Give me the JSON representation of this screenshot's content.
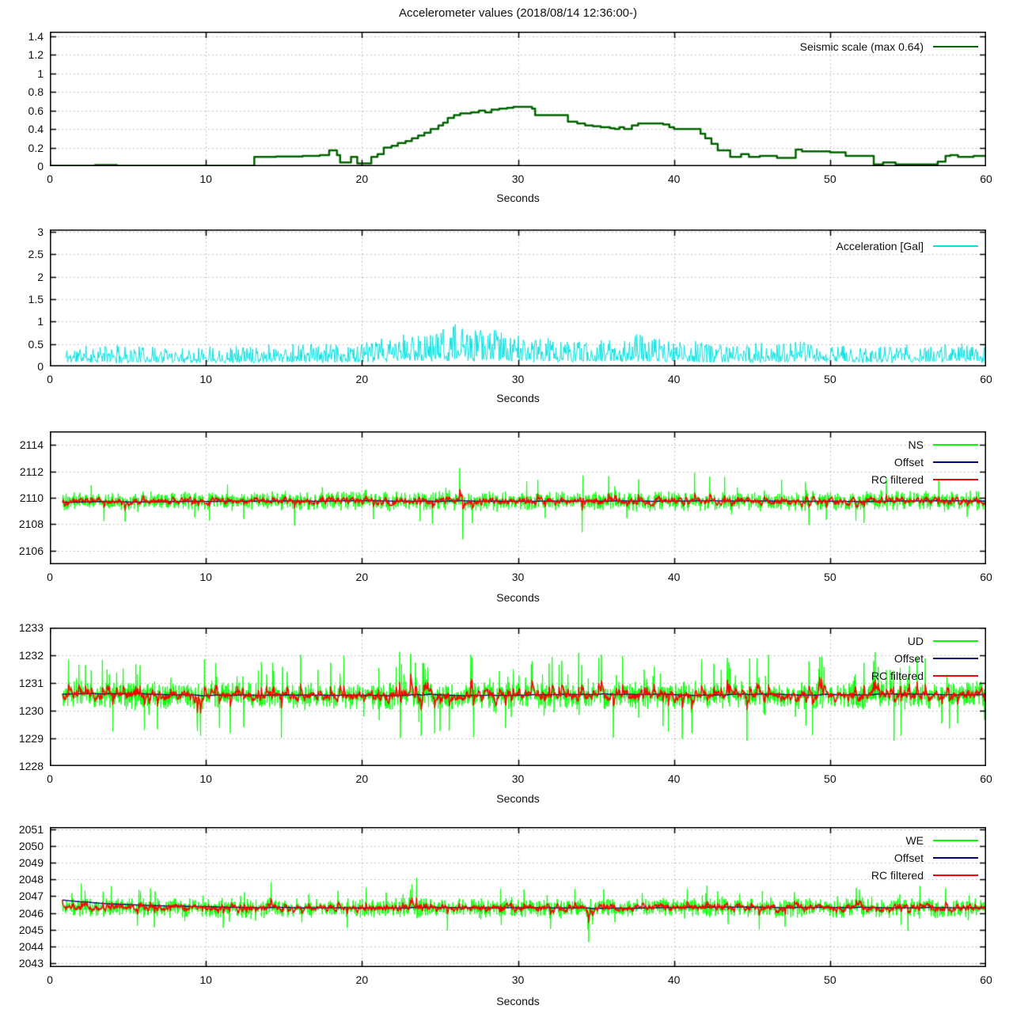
{
  "title": "Accelerometer values (2018/08/14 12:36:00-)",
  "page": {
    "background": "#ffffff",
    "border_color": "#000000",
    "grid_color": "#b0b0b0",
    "text_color": "#111111"
  },
  "chart_data": [
    {
      "type": "line",
      "name": "seismic-scale",
      "xlabel": "Seconds",
      "xlim": [
        0,
        60
      ],
      "xticks": [
        0,
        10,
        20,
        30,
        40,
        50,
        60
      ],
      "ylim": [
        0,
        1.45
      ],
      "yticks": [
        0,
        0.2,
        0.4,
        0.6,
        0.8,
        1,
        1.2,
        1.4
      ],
      "grid": true,
      "legend_position": "top-right-inside",
      "series": [
        {
          "name": "Seismic scale (max 0.64)",
          "color": "#006400",
          "line_width": 2.5,
          "mode": "steps",
          "points": [
            [
              0,
              0.005
            ],
            [
              2.9,
              0.012
            ],
            [
              4.3,
              0.005
            ],
            [
              13.1,
              0.1
            ],
            [
              14.5,
              0.105
            ],
            [
              16.2,
              0.11
            ],
            [
              17.3,
              0.12
            ],
            [
              17.9,
              0.17
            ],
            [
              18.4,
              0.12
            ],
            [
              18.6,
              0.04
            ],
            [
              19.3,
              0.1
            ],
            [
              19.7,
              0.03
            ],
            [
              20.6,
              0.1
            ],
            [
              21.0,
              0.13
            ],
            [
              21.4,
              0.2
            ],
            [
              21.9,
              0.22
            ],
            [
              22.3,
              0.25
            ],
            [
              22.8,
              0.27
            ],
            [
              23.2,
              0.3
            ],
            [
              23.6,
              0.33
            ],
            [
              24.0,
              0.36
            ],
            [
              24.4,
              0.4
            ],
            [
              24.9,
              0.44
            ],
            [
              25.2,
              0.47
            ],
            [
              25.5,
              0.52
            ],
            [
              25.9,
              0.55
            ],
            [
              26.3,
              0.57
            ],
            [
              27.0,
              0.58
            ],
            [
              27.5,
              0.6
            ],
            [
              27.9,
              0.58
            ],
            [
              28.3,
              0.61
            ],
            [
              28.8,
              0.62
            ],
            [
              29.3,
              0.63
            ],
            [
              29.7,
              0.64
            ],
            [
              30.9,
              0.62
            ],
            [
              31.1,
              0.55
            ],
            [
              33.2,
              0.48
            ],
            [
              33.8,
              0.46
            ],
            [
              34.3,
              0.44
            ],
            [
              34.8,
              0.43
            ],
            [
              35.3,
              0.42
            ],
            [
              35.9,
              0.41
            ],
            [
              36.2,
              0.4
            ],
            [
              36.5,
              0.42
            ],
            [
              36.8,
              0.4
            ],
            [
              37.3,
              0.44
            ],
            [
              37.7,
              0.46
            ],
            [
              39.3,
              0.45
            ],
            [
              39.7,
              0.42
            ],
            [
              40.0,
              0.4
            ],
            [
              41.7,
              0.35
            ],
            [
              42.0,
              0.3
            ],
            [
              42.4,
              0.24
            ],
            [
              42.8,
              0.17
            ],
            [
              43.6,
              0.1
            ],
            [
              44.3,
              0.13
            ],
            [
              44.8,
              0.1
            ],
            [
              45.5,
              0.11
            ],
            [
              46.6,
              0.09
            ],
            [
              47.8,
              0.18
            ],
            [
              48.2,
              0.16
            ],
            [
              50.0,
              0.15
            ],
            [
              51.0,
              0.11
            ],
            [
              52.8,
              0.02
            ],
            [
              53.4,
              0.04
            ],
            [
              54.2,
              0.02
            ],
            [
              56.9,
              0.05
            ],
            [
              57.4,
              0.11
            ],
            [
              57.7,
              0.12
            ],
            [
              58.2,
              0.1
            ],
            [
              59.2,
              0.11
            ],
            [
              60,
              0.11
            ]
          ]
        }
      ]
    },
    {
      "type": "line",
      "name": "acceleration",
      "xlabel": "Seconds",
      "xlim": [
        0,
        60
      ],
      "xticks": [
        0,
        10,
        20,
        30,
        40,
        50,
        60
      ],
      "ylim": [
        0,
        3.05
      ],
      "yticks": [
        0,
        0.5,
        1,
        1.5,
        2,
        2.5,
        3
      ],
      "grid": true,
      "legend_position": "top-right-inside",
      "series": [
        {
          "name": "Acceleration [Gal]",
          "color": "#00e1e1",
          "line_width": 1,
          "mode": "envelope-noise",
          "seed": 11,
          "samples": 1300,
          "base": 0.02,
          "envelope": [
            [
              0,
              0.42
            ],
            [
              3,
              0.5
            ],
            [
              6,
              0.45
            ],
            [
              9,
              0.5
            ],
            [
              12,
              0.48
            ],
            [
              15,
              0.55
            ],
            [
              18,
              0.5
            ],
            [
              20,
              0.55
            ],
            [
              22,
              0.7
            ],
            [
              24,
              0.85
            ],
            [
              25,
              0.95
            ],
            [
              26,
              1.05
            ],
            [
              27,
              0.8
            ],
            [
              28,
              1.0
            ],
            [
              29,
              0.85
            ],
            [
              30,
              0.75
            ],
            [
              31,
              0.7
            ],
            [
              32,
              0.65
            ],
            [
              33,
              0.6
            ],
            [
              34,
              0.6
            ],
            [
              35,
              0.6
            ],
            [
              36,
              0.65
            ],
            [
              37,
              0.7
            ],
            [
              38,
              0.8
            ],
            [
              39,
              0.65
            ],
            [
              40,
              0.6
            ],
            [
              41,
              0.55
            ],
            [
              42,
              0.6
            ],
            [
              43,
              0.55
            ],
            [
              44,
              0.5
            ],
            [
              45,
              0.55
            ],
            [
              46,
              0.5
            ],
            [
              47,
              0.55
            ],
            [
              48,
              0.6
            ],
            [
              49,
              0.5
            ],
            [
              50,
              0.55
            ],
            [
              51,
              0.5
            ],
            [
              52,
              0.45
            ],
            [
              53,
              0.5
            ],
            [
              54,
              0.45
            ],
            [
              55,
              0.5
            ],
            [
              56,
              0.45
            ],
            [
              57,
              0.55
            ],
            [
              58,
              0.5
            ],
            [
              59,
              0.55
            ],
            [
              60,
              0.5
            ]
          ]
        }
      ]
    },
    {
      "type": "line",
      "name": "ns-channel",
      "xlabel": "Seconds",
      "xlim": [
        0,
        60
      ],
      "xticks": [
        0,
        10,
        20,
        30,
        40,
        50,
        60
      ],
      "ylim": [
        2104.95,
        2115.05
      ],
      "yticks": [
        2106,
        2108,
        2110,
        2112,
        2114
      ],
      "grid": true,
      "legend_position": "top-right-inside",
      "series": [
        {
          "name": "NS",
          "color": "#00ff00",
          "line_width": 1,
          "mode": "noise",
          "seed": 101,
          "samples": 2400,
          "mean": 2109.75,
          "jitter": 0.85,
          "spike_up_prob": 0.008,
          "spike_up": 1.2,
          "spike_down_prob": 0.008,
          "spike_down": 1.5,
          "forced_spikes": [
            [
              25.8,
              2.5
            ],
            [
              26.0,
              -2.9
            ],
            [
              30.9,
              1.6
            ],
            [
              35.5,
              1.9
            ]
          ]
        },
        {
          "name": "Offset",
          "color": "#000080",
          "line_width": 1.4,
          "mode": "lowpass",
          "source": 0,
          "alpha": 0.006
        },
        {
          "name": "RC filtered",
          "color": "#ff0000",
          "line_width": 1.4,
          "mode": "lowpass",
          "source": 0,
          "alpha": 0.28
        }
      ]
    },
    {
      "type": "line",
      "name": "ud-channel",
      "xlabel": "Seconds",
      "xlim": [
        0,
        60
      ],
      "xticks": [
        0,
        10,
        20,
        30,
        40,
        50,
        60
      ],
      "ylim": [
        1228,
        1233
      ],
      "yticks": [
        1228,
        1229,
        1230,
        1231,
        1232,
        1233
      ],
      "grid": true,
      "legend_position": "top-right-inside",
      "series": [
        {
          "name": "UD",
          "color": "#00ff00",
          "line_width": 1,
          "mode": "noise",
          "seed": 202,
          "samples": 2400,
          "mean": 1230.55,
          "jitter": 0.55,
          "spike_up_prob": 0.06,
          "spike_up": 0.9,
          "spike_down_prob": 0.02,
          "spike_down": 1.0,
          "forced_spikes": [
            [
              26.7,
              -1.5
            ]
          ]
        },
        {
          "name": "Offset",
          "color": "#000080",
          "line_width": 1.4,
          "mode": "lowpass",
          "source": 0,
          "alpha": 0.006
        },
        {
          "name": "RC filtered",
          "color": "#ff0000",
          "line_width": 1.4,
          "mode": "lowpass",
          "source": 0,
          "alpha": 0.28
        }
      ]
    },
    {
      "type": "line",
      "name": "we-channel",
      "xlabel": "Seconds",
      "xlim": [
        0,
        60
      ],
      "xticks": [
        0,
        10,
        20,
        30,
        40,
        50,
        60
      ],
      "ylim": [
        2042.75,
        2051.15
      ],
      "yticks": [
        2043,
        2044,
        2045,
        2046,
        2047,
        2048,
        2049,
        2050,
        2051
      ],
      "grid": true,
      "legend_position": "top-right-inside",
      "series": [
        {
          "name": "WE",
          "color": "#00ff00",
          "line_width": 1,
          "mode": "noise",
          "seed": 303,
          "samples": 2400,
          "mean": 2046.3,
          "jitter": 0.65,
          "spike_up_prob": 0.03,
          "spike_up": 0.8,
          "spike_down_prob": 0.015,
          "spike_down": 0.9,
          "forced_spikes": [
            [
              23.0,
              1.8
            ],
            [
              34.2,
              -2.05
            ]
          ]
        },
        {
          "name": "Offset",
          "color": "#000080",
          "line_width": 1.4,
          "mode": "lowpass",
          "source": 0,
          "alpha": 0.006
        },
        {
          "name": "RC filtered",
          "color": "#ff0000",
          "line_width": 1.4,
          "mode": "lowpass",
          "source": 0,
          "alpha": 0.28
        }
      ]
    }
  ]
}
